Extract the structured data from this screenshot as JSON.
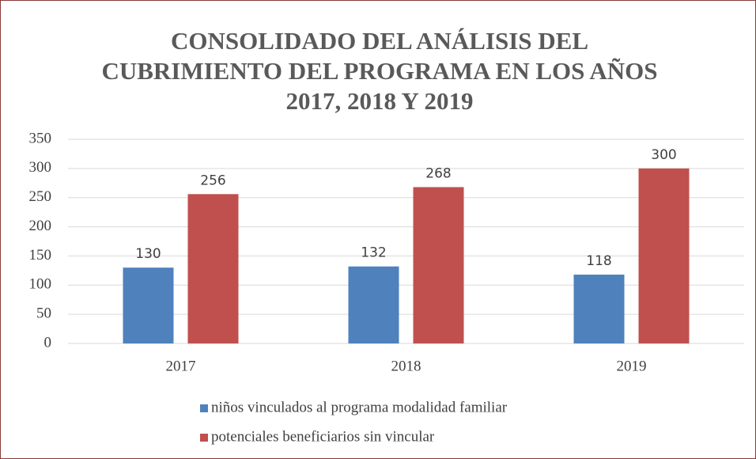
{
  "chart_data": {
    "type": "bar",
    "title": "CONSOLIDADO DEL ANÁLISIS DEL CUBRIMIENTO DEL PROGRAMA EN LOS AÑOS 2017, 2018 Y 2019",
    "categories": [
      "2017",
      "2018",
      "2019"
    ],
    "series": [
      {
        "name": "niños vinculados al programa modalidad familiar",
        "color": "#4f81bd",
        "values": [
          130,
          132,
          118
        ]
      },
      {
        "name": "potenciales beneficiarios sin vincular",
        "color": "#c0504d",
        "values": [
          256,
          268,
          300
        ]
      }
    ],
    "ylim": [
      0,
      350
    ],
    "yticks": [
      0,
      50,
      100,
      150,
      200,
      250,
      300,
      350
    ],
    "grid": true,
    "legend": "bottom"
  }
}
